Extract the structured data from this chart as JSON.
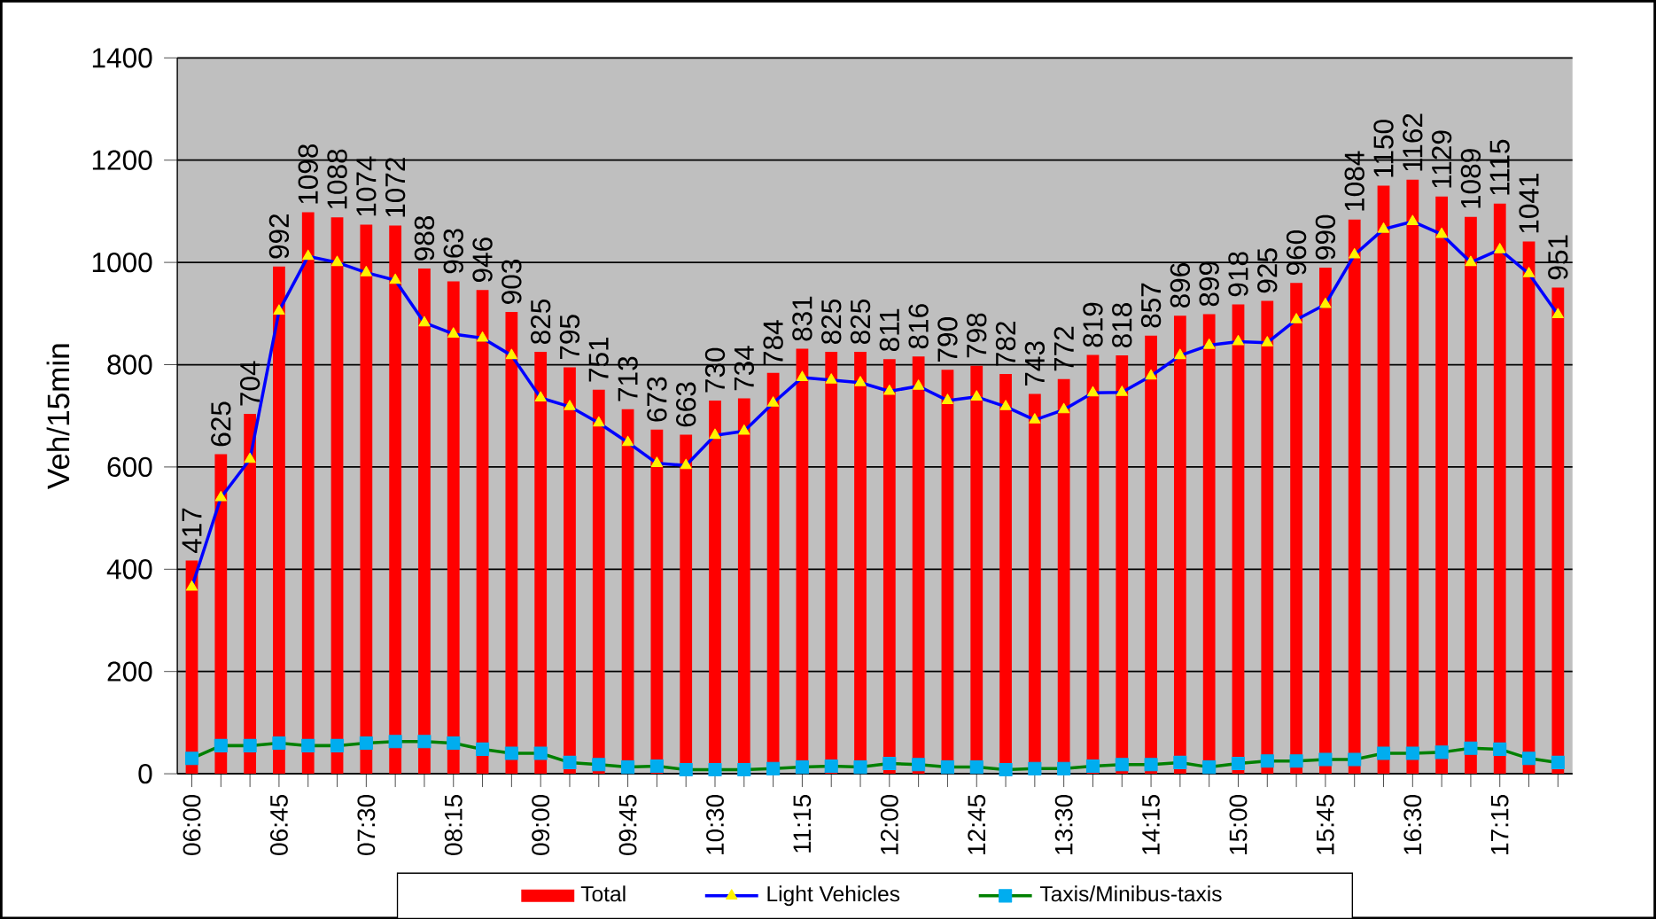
{
  "chart_data": {
    "type": "bar",
    "ylabel": "Veh/15min",
    "categories": [
      "06:00",
      null,
      null,
      "06:45",
      null,
      null,
      "07:30",
      null,
      null,
      "08:15",
      null,
      null,
      "09:00",
      null,
      null,
      "09:45",
      null,
      null,
      "10:30",
      null,
      null,
      "11:15",
      null,
      null,
      "12:00",
      null,
      null,
      "12:45",
      null,
      null,
      "13:30",
      null,
      null,
      "14:15",
      null,
      null,
      "15:00",
      null,
      null,
      "15:45",
      null,
      null,
      "16:30",
      null,
      null,
      "17:15",
      null,
      null
    ],
    "series": [
      {
        "name": "Total",
        "color": "#ff0000",
        "values": [
          417,
          625,
          704,
          992,
          1098,
          1088,
          1074,
          1072,
          988,
          963,
          946,
          903,
          825,
          795,
          751,
          713,
          673,
          663,
          730,
          734,
          784,
          831,
          825,
          825,
          811,
          816,
          790,
          798,
          782,
          743,
          772,
          819,
          818,
          857,
          896,
          899,
          918,
          925,
          960,
          990,
          1084,
          1150,
          1162,
          1129,
          1089,
          1115,
          1041,
          951
        ],
        "value_labels": [
          "417",
          "625",
          "704",
          "992",
          "1098",
          "1088",
          "1074",
          "1072",
          "988",
          "963",
          "946",
          "903",
          "825",
          "795",
          "751",
          "713",
          "673",
          "663",
          "730",
          "734",
          "784",
          "831",
          "825",
          "825",
          "811",
          "816",
          "790",
          "798",
          "782",
          "743",
          "772",
          "819",
          "818",
          "857",
          "896",
          "899",
          "918",
          "925",
          "960",
          "990",
          "1084",
          "1150",
          "1162",
          "1129",
          "1089",
          "1115",
          "1041",
          "951"
        ]
      },
      {
        "name": "Light Vehicles",
        "type": "line",
        "color": "#0000ff",
        "marker": "triangle",
        "values": [
          365,
          540,
          615,
          905,
          1012,
          1000,
          980,
          965,
          882,
          860,
          852,
          818,
          735,
          718,
          686,
          648,
          607,
          603,
          662,
          670,
          725,
          775,
          770,
          765,
          748,
          758,
          730,
          737,
          718,
          692,
          712,
          745,
          746,
          778,
          818,
          838,
          845,
          843,
          888,
          918,
          1015,
          1065,
          1080,
          1055,
          1000,
          1025,
          978,
          898
        ]
      },
      {
        "name": "Taxis/Minibus-taxis",
        "type": "line",
        "color": "#008000",
        "marker": "square",
        "values": [
          30,
          55,
          55,
          60,
          55,
          55,
          60,
          63,
          63,
          60,
          48,
          40,
          40,
          22,
          18,
          13,
          15,
          8,
          8,
          8,
          10,
          13,
          15,
          13,
          20,
          18,
          13,
          13,
          8,
          10,
          10,
          15,
          18,
          18,
          22,
          13,
          20,
          25,
          25,
          28,
          28,
          40,
          40,
          42,
          50,
          48,
          30,
          22
        ]
      }
    ],
    "ylim": [
      0,
      1400
    ],
    "yticks": [
      0,
      200,
      400,
      600,
      800,
      1000,
      1200,
      1400
    ],
    "grid": "y",
    "legend": "bottom"
  }
}
